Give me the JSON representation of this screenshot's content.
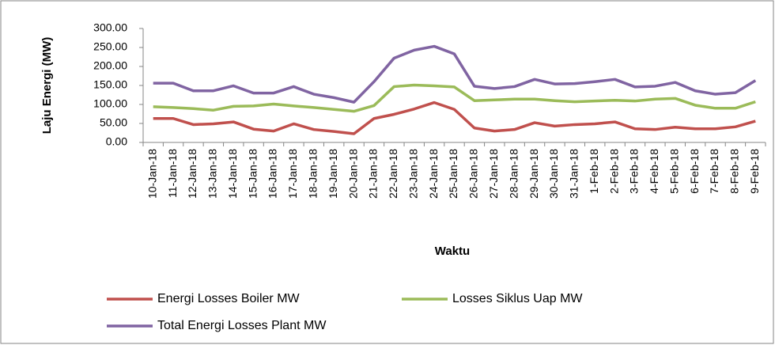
{
  "chart_data": {
    "type": "line",
    "xlabel": "Waktu",
    "ylabel": "Laju Energi (MW)",
    "categories": [
      "10-Jan-18",
      "11-Jan-18",
      "12-Jan-18",
      "13-Jan-18",
      "14-Jan-18",
      "15-Jan-18",
      "16-Jan-18",
      "17-Jan-18",
      "18-Jan-18",
      "19-Jan-18",
      "20-Jan-18",
      "21-Jan-18",
      "22-Jan-18",
      "23-Jan-18",
      "24-Jan-18",
      "25-Jan-18",
      "26-Jan-18",
      "27-Jan-18",
      "28-Jan-18",
      "29-Jan-18",
      "30-Jan-18",
      "31-Jan-18",
      "1-Feb-18",
      "2-Feb-18",
      "3-Feb-18",
      "4-Feb-18",
      "5-Feb-18",
      "6-Feb-18",
      "7-Feb-18",
      "8-Feb-18",
      "9-Feb-18"
    ],
    "series": [
      {
        "name": "Energi Losses Boiler MW",
        "color": "#c0504d",
        "values": [
          63,
          63,
          47,
          49,
          54,
          35,
          30,
          49,
          34,
          29,
          23,
          63,
          74,
          88,
          105,
          87,
          38,
          30,
          34,
          52,
          43,
          47,
          49,
          54,
          36,
          34,
          40,
          36,
          36,
          41,
          56
        ]
      },
      {
        "name": "Losses Siklus Uap MW",
        "color": "#9bbb59",
        "values": [
          94,
          92,
          89,
          85,
          95,
          96,
          101,
          96,
          92,
          87,
          82,
          97,
          147,
          151,
          149,
          146,
          110,
          112,
          114,
          114,
          110,
          107,
          109,
          111,
          109,
          114,
          116,
          98,
          90,
          90,
          107
        ]
      },
      {
        "name": "Total Energi Losses Plant MW",
        "color": "#8064a2",
        "values": [
          156,
          156,
          136,
          136,
          149,
          130,
          130,
          147,
          127,
          118,
          106,
          160,
          222,
          243,
          253,
          233,
          148,
          142,
          147,
          166,
          154,
          155,
          160,
          166,
          146,
          148,
          158,
          136,
          127,
          131,
          163
        ]
      }
    ],
    "ylim": [
      0,
      300
    ],
    "yticks": [
      {
        "value": 0,
        "label": "0.00"
      },
      {
        "value": 50,
        "label": "50.00"
      },
      {
        "value": 100,
        "label": "100.00"
      },
      {
        "value": 150,
        "label": "150.00"
      },
      {
        "value": 200,
        "label": "200.00"
      },
      {
        "value": 250,
        "label": "250.00"
      },
      {
        "value": 300,
        "label": "300.00"
      }
    ],
    "grid": false,
    "legend": "bottom"
  }
}
